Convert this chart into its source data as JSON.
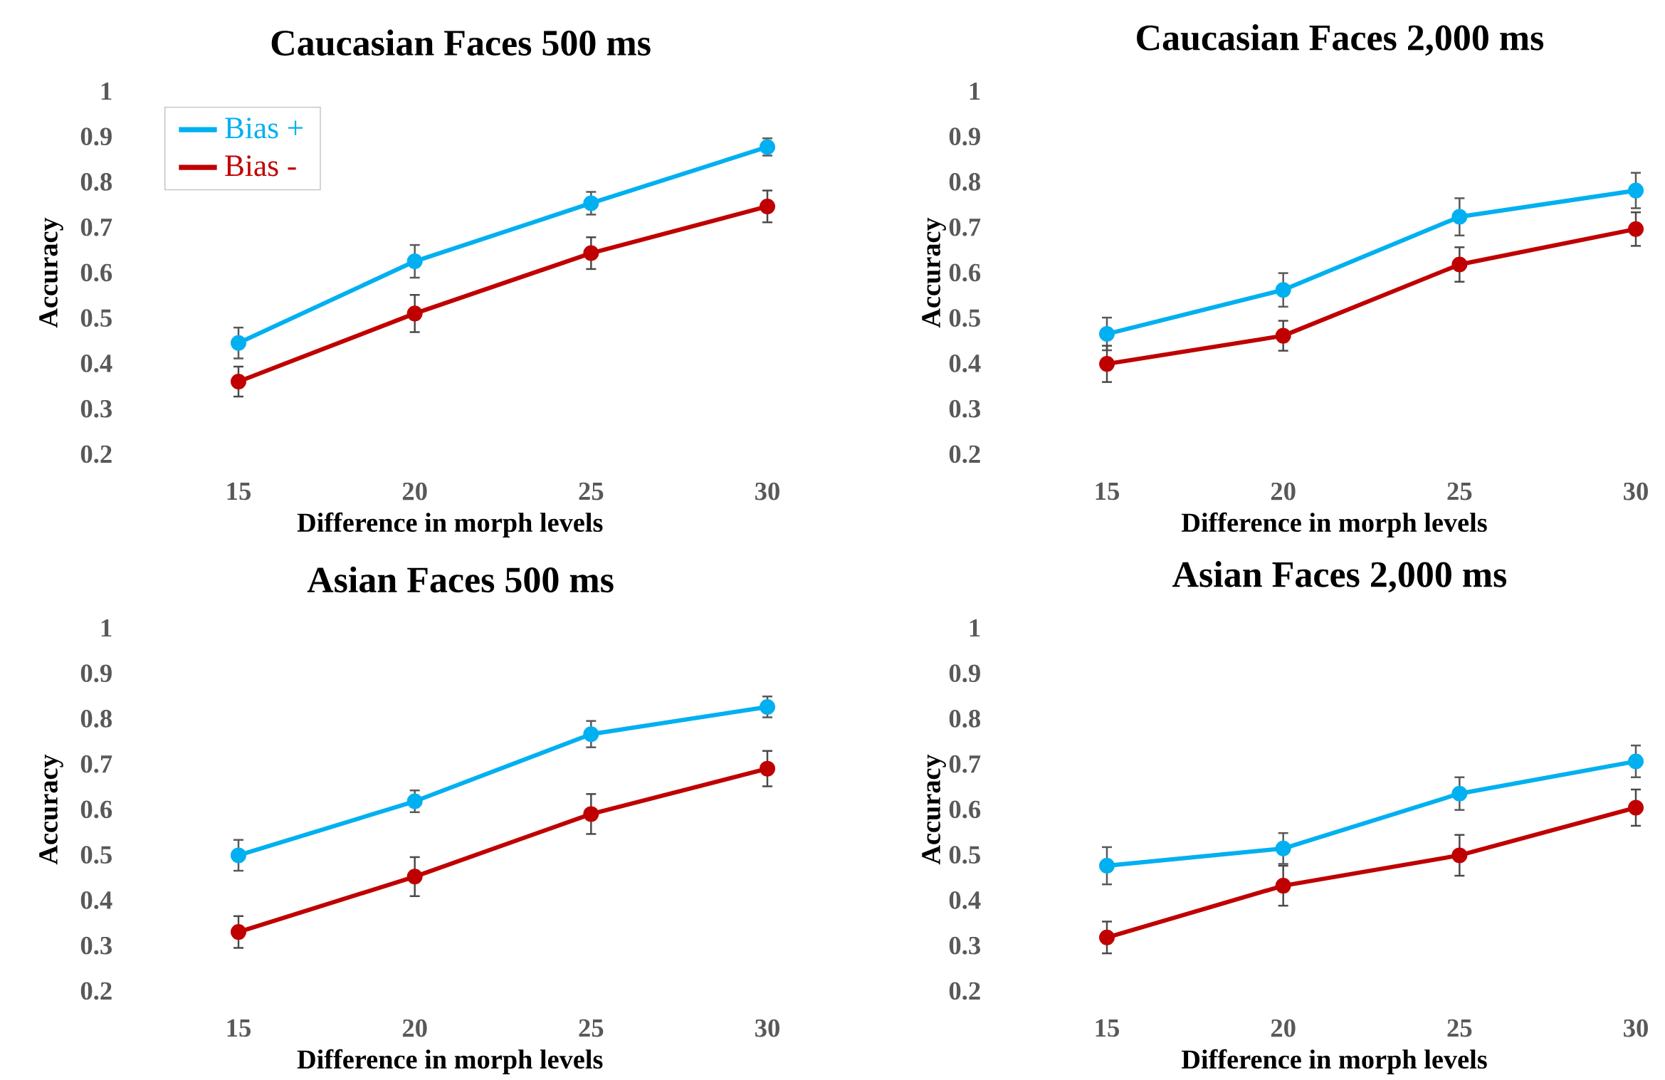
{
  "chart_data": [
    {
      "type": "line",
      "title": "Caucasian Faces 500 ms",
      "xlabel": "Difference in morph levels",
      "ylabel": "Accuracy",
      "x": [
        15,
        20,
        25,
        30
      ],
      "xlim": [
        15,
        30
      ],
      "xticks": [
        15,
        20,
        25,
        30
      ],
      "ylim": [
        0.2,
        1
      ],
      "yticks": [
        0.2,
        0.3,
        0.4,
        0.5,
        0.6,
        0.7,
        0.8,
        0.9,
        1
      ],
      "legend": "top left",
      "marker": "circle",
      "line_style": "solid",
      "series": [
        {
          "name": "Bias +",
          "color": "#00b0f0",
          "values": [
            0.445,
            0.625,
            0.753,
            0.877
          ],
          "errors": [
            0.034,
            0.036,
            0.025,
            0.019
          ]
        },
        {
          "name": "Bias -",
          "color": "#c00000",
          "values": [
            0.36,
            0.51,
            0.643,
            0.746
          ],
          "errors": [
            0.033,
            0.041,
            0.035,
            0.035
          ]
        }
      ]
    },
    {
      "type": "line",
      "title": "Caucasian Faces 2,000 ms",
      "xlabel": "Difference in morph levels",
      "ylabel": "Accuracy",
      "x": [
        15,
        20,
        25,
        30
      ],
      "xlim": [
        15,
        30
      ],
      "xticks": [
        15,
        20,
        25,
        30
      ],
      "ylim": [
        0.2,
        1
      ],
      "yticks": [
        0.2,
        0.3,
        0.4,
        0.5,
        0.6,
        0.7,
        0.8,
        0.9,
        1
      ],
      "marker": "circle",
      "line_style": "solid",
      "series": [
        {
          "color": "#00b0f0",
          "values": [
            0.465,
            0.562,
            0.723,
            0.781
          ],
          "errors": [
            0.036,
            0.037,
            0.041,
            0.039
          ]
        },
        {
          "color": "#c00000",
          "values": [
            0.399,
            0.461,
            0.618,
            0.696
          ],
          "errors": [
            0.04,
            0.033,
            0.038,
            0.037
          ]
        }
      ]
    },
    {
      "type": "line",
      "title": "Asian Faces 500 ms",
      "xlabel": "Difference in morph levels",
      "ylabel": "Accuracy",
      "x": [
        15,
        20,
        25,
        30
      ],
      "xlim": [
        15,
        30
      ],
      "xticks": [
        15,
        20,
        25,
        30
      ],
      "ylim": [
        0.2,
        1
      ],
      "yticks": [
        0.2,
        0.3,
        0.4,
        0.5,
        0.6,
        0.7,
        0.8,
        0.9,
        1
      ],
      "marker": "circle",
      "line_style": "solid",
      "series": [
        {
          "color": "#00b0f0",
          "values": [
            0.499,
            0.618,
            0.766,
            0.826
          ],
          "errors": [
            0.034,
            0.024,
            0.029,
            0.023
          ]
        },
        {
          "color": "#c00000",
          "values": [
            0.33,
            0.452,
            0.59,
            0.69
          ],
          "errors": [
            0.035,
            0.043,
            0.044,
            0.039
          ]
        }
      ]
    },
    {
      "type": "line",
      "title": "Asian Faces 2,000 ms",
      "xlabel": "Difference in morph levels",
      "ylabel": "Accuracy",
      "x": [
        15,
        20,
        25,
        30
      ],
      "xlim": [
        15,
        30
      ],
      "xticks": [
        15,
        20,
        25,
        30
      ],
      "ylim": [
        0.2,
        1
      ],
      "yticks": [
        0.2,
        0.3,
        0.4,
        0.5,
        0.6,
        0.7,
        0.8,
        0.9,
        1
      ],
      "marker": "circle",
      "line_style": "solid",
      "series": [
        {
          "color": "#00b0f0",
          "values": [
            0.476,
            0.514,
            0.635,
            0.706
          ],
          "errors": [
            0.041,
            0.034,
            0.036,
            0.035
          ]
        },
        {
          "color": "#c00000",
          "values": [
            0.318,
            0.432,
            0.499,
            0.604
          ],
          "errors": [
            0.035,
            0.044,
            0.045,
            0.04
          ]
        }
      ]
    }
  ]
}
